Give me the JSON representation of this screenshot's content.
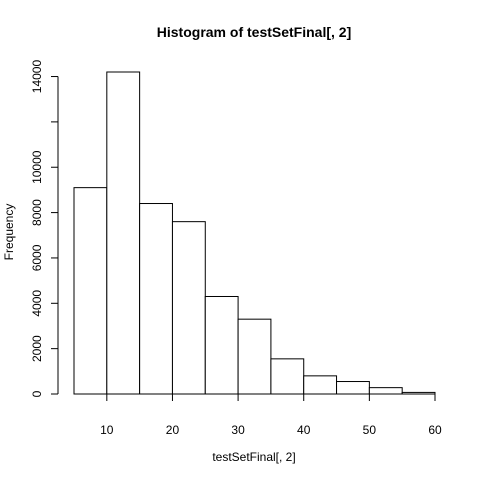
{
  "chart_data": {
    "type": "bar",
    "title": "Histogram of testSetFinal[, 2]",
    "xlabel": "testSetFinal[, 2]",
    "ylabel": "Frequency",
    "bins": [
      {
        "start": 5,
        "end": 10,
        "count": 9100
      },
      {
        "start": 10,
        "end": 15,
        "count": 14200
      },
      {
        "start": 15,
        "end": 20,
        "count": 8400
      },
      {
        "start": 20,
        "end": 25,
        "count": 7600
      },
      {
        "start": 25,
        "end": 30,
        "count": 4300
      },
      {
        "start": 30,
        "end": 35,
        "count": 3300
      },
      {
        "start": 35,
        "end": 40,
        "count": 1550
      },
      {
        "start": 40,
        "end": 45,
        "count": 800
      },
      {
        "start": 45,
        "end": 50,
        "count": 550
      },
      {
        "start": 50,
        "end": 55,
        "count": 280
      },
      {
        "start": 55,
        "end": 60,
        "count": 70
      }
    ],
    "xlim": [
      5,
      60
    ],
    "ylim": [
      0,
      14200
    ],
    "x_ticks": [
      10,
      20,
      30,
      40,
      50,
      60
    ],
    "y_ticks": [
      0,
      2000,
      4000,
      6000,
      8000,
      10000,
      14000
    ],
    "grid": false,
    "legend": "none"
  }
}
